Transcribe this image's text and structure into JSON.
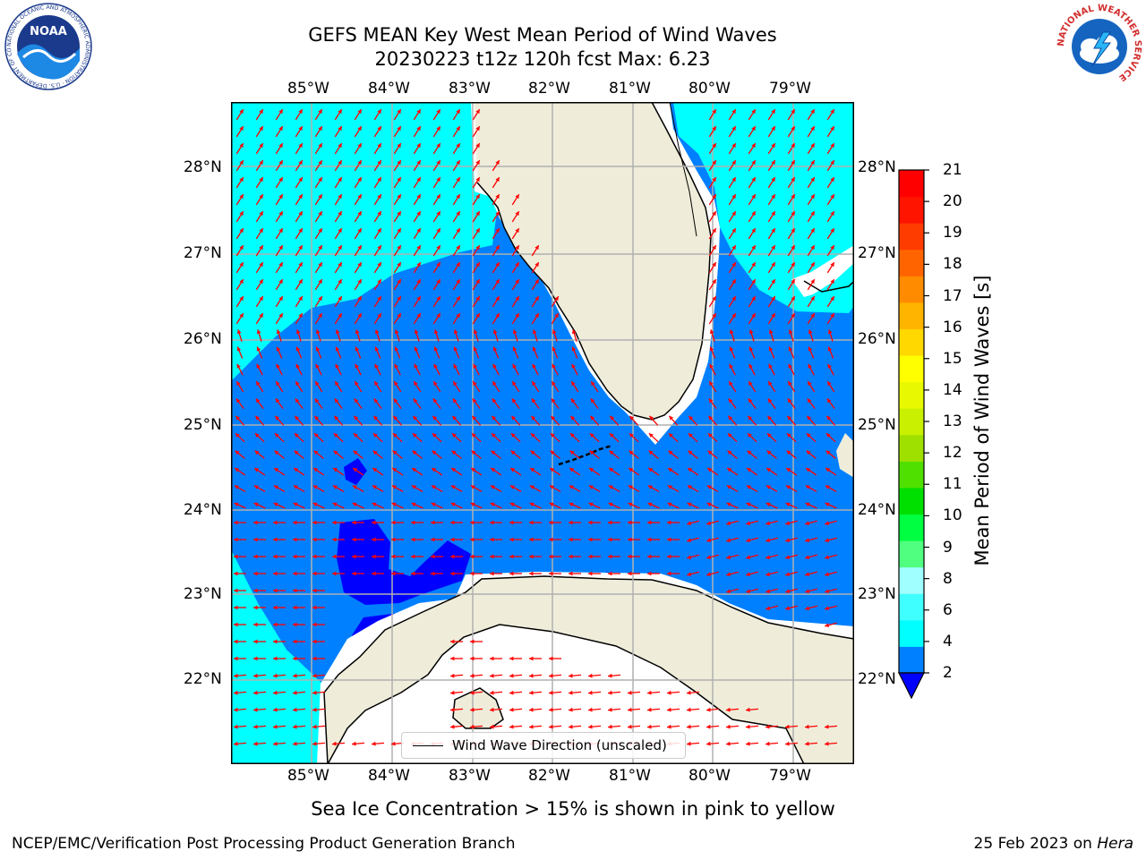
{
  "title": {
    "line1": "GEFS MEAN Key West Mean Period of Wind Waves",
    "line2": "20230223 t12z 120h fcst   Max: 6.23"
  },
  "map": {
    "lon_labels": [
      "85°W",
      "84°W",
      "83°W",
      "82°W",
      "81°W",
      "80°W",
      "79°W"
    ],
    "lat_labels": [
      "28°N",
      "27°N",
      "26°N",
      "25°N",
      "24°N",
      "23°N",
      "22°N"
    ],
    "legend_label": "Wind Wave Direction (unscaled)",
    "colors": {
      "ocean_2_4": "#0080ff",
      "ocean_below_2": "#0000ff",
      "ocean_4_6": "#00ffff",
      "land": "#efedda",
      "gridlines": "#b0b0b0",
      "arrows": "#ff0000"
    }
  },
  "colorbar": {
    "label": "Mean Period of Wind Waves [s]",
    "ticks": [
      "21",
      "20",
      "19",
      "18",
      "17",
      "16",
      "15",
      "14",
      "13",
      "12",
      "11",
      "10",
      "9",
      "8",
      "6",
      "4",
      "2"
    ],
    "colors": [
      "#0080ff",
      "#00ffff",
      "#40ffff",
      "#a0ffff",
      "#50ff80",
      "#00ff40",
      "#00e000",
      "#50e000",
      "#a0e000",
      "#c8f000",
      "#e8f800",
      "#ffff00",
      "#ffd800",
      "#ffb400",
      "#ff8c00",
      "#ff6400",
      "#ff3c00",
      "#ff1400",
      "#ff0000"
    ],
    "extend": "min"
  },
  "caption": "Sea Ice Concentration > 15% is shown in pink to yellow",
  "footer": {
    "left": "NCEP/EMC/Verification Post Processing Product Generation Branch",
    "date": "25 Feb 2023",
    "on": " on ",
    "machine": "Hera"
  },
  "logos": {
    "noaa_text": "NOAA",
    "noaa_ring": "NATIONAL OCEANIC AND ATMOSPHERIC ADMINISTRATION · U.S. DEPARTMENT OF COMMERCE",
    "nws_ring": "NATIONAL WEATHER SERVICE"
  }
}
